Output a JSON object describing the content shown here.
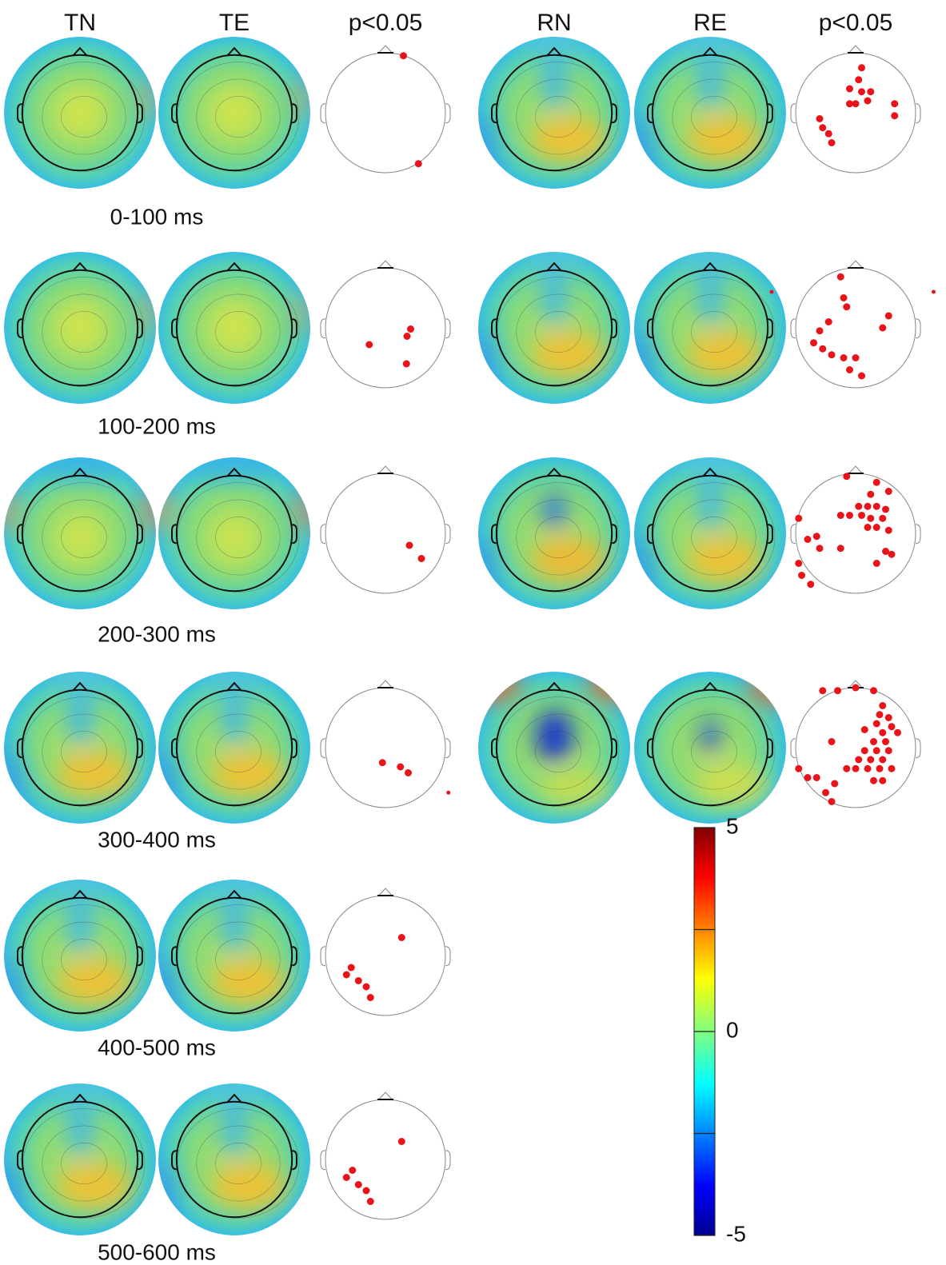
{
  "columns": [
    "TN",
    "TE",
    "p<0.05",
    "RN",
    "RE",
    "p<0.05"
  ],
  "rows": [
    "0-100 ms",
    "100-200 ms",
    "200-300 ms",
    "300-400 ms",
    "400-500 ms",
    "500-600 ms"
  ],
  "colorbar": {
    "range": [
      -5,
      5
    ],
    "ticks": [
      -5,
      0,
      5
    ],
    "minor_ticks": [
      -2.5,
      2.5
    ]
  }
}
